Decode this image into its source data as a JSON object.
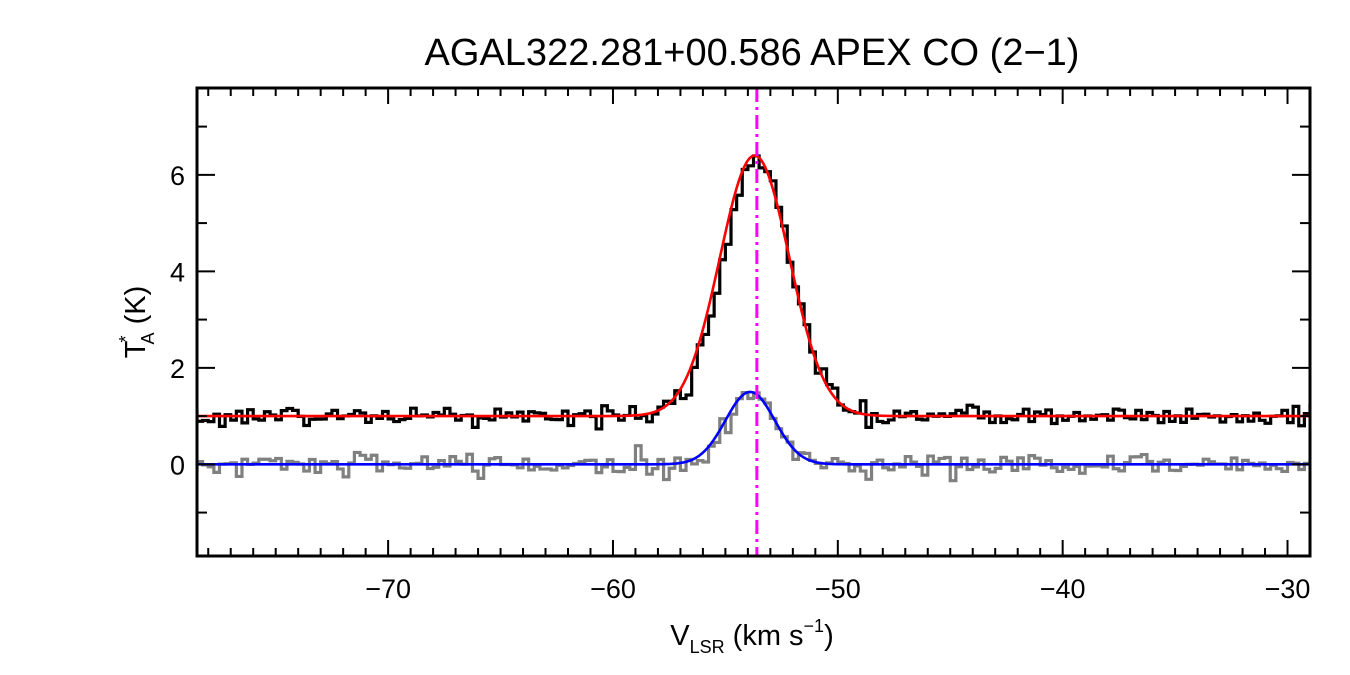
{
  "chart_data": {
    "type": "line",
    "title": "AGAL322.281+00.586  APEX CO (2−1)",
    "xlabel": {
      "main": "V",
      "sub": "LSR",
      "unit": " (km s",
      "sup": "−1",
      "close": ")"
    },
    "ylabel": {
      "main": "T",
      "sup": "*",
      "sub": "A",
      "unit": " (K)"
    },
    "xlim": [
      -78.5,
      -29
    ],
    "ylim": [
      -1.9,
      7.8
    ],
    "x_ticks": [
      -70,
      -60,
      -50,
      -40,
      -30
    ],
    "x_tick_labels": [
      "−70",
      "−60",
      "−50",
      "−40",
      "−30"
    ],
    "y_ticks": [
      0,
      2,
      4,
      6
    ],
    "y_tick_labels": [
      "0",
      "2",
      "4",
      "6"
    ],
    "grid": false,
    "reference_line": {
      "x": -53.6,
      "color": "#ff00ff",
      "style": "dash-dot"
    },
    "series": [
      {
        "kind": "observed",
        "color": "#000000",
        "channel_width": 0.25,
        "baseline": 1.0,
        "noise": 0.11,
        "model": {
          "amplitude": 5.35,
          "center": -53.7,
          "sigma": 1.5
        }
      },
      {
        "kind": "fit",
        "color": "#ff0000",
        "baseline": 1.0,
        "model": {
          "amplitude": 5.4,
          "center": -53.7,
          "sigma": 1.55
        }
      },
      {
        "kind": "observed",
        "color": "#808080",
        "channel_width": 0.25,
        "baseline": 0.0,
        "noise": 0.12,
        "model": {
          "amplitude": 1.45,
          "center": -53.9,
          "sigma": 1.05
        }
      },
      {
        "kind": "fit",
        "color": "#0000ff",
        "baseline": 0.0,
        "model": {
          "amplitude": 1.5,
          "center": -53.9,
          "sigma": 1.1
        }
      }
    ]
  }
}
